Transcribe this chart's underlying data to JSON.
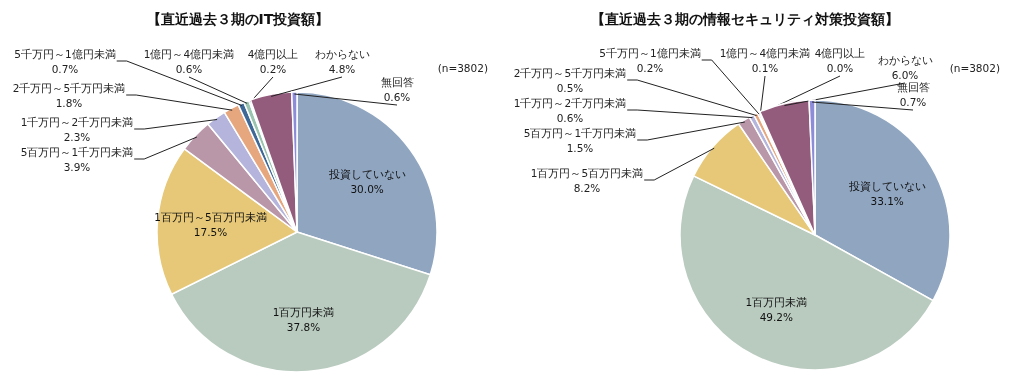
{
  "chart_data": [
    {
      "type": "pie",
      "title": "【直近過去３期のIT投資額】",
      "categories": [
        "投資していない",
        "1百万円未満",
        "1百万円～5百万円未満",
        "5百万円～1千万円未満",
        "1千万円～2千万円未満",
        "2千万円～5千万円未満",
        "5千万円～1億円未満",
        "1億円～4億円未満",
        "4億円以上",
        "わからない",
        "無回答"
      ],
      "values": [
        30.0,
        37.8,
        17.5,
        3.9,
        2.3,
        1.8,
        0.7,
        0.6,
        0.2,
        4.8,
        0.6
      ],
      "value_labels": [
        "30.0%",
        "37.8%",
        "17.5%",
        "3.9%",
        "2.3%",
        "1.8%",
        "0.7%",
        "0.6%",
        "0.2%",
        "4.8%",
        "0.6%"
      ],
      "colors": [
        "#8fa5c0",
        "#b9cbbf",
        "#e6c878",
        "#b996a8",
        "#b4b4dc",
        "#e6a67e",
        "#3e6896",
        "#9ac4b0",
        "#d8e8f0",
        "#945c7c",
        "#8c8cd8"
      ],
      "annotations": [
        "(n=3802)"
      ]
    },
    {
      "type": "pie",
      "title": "【直近過去３期の情報セキュリティ対策投資額】",
      "categories": [
        "投資していない",
        "1百万円未満",
        "1百万円～5百万円未満",
        "5百万円～1千万円未満",
        "1千万円～2千万円未満",
        "2千万円～5千万円未満",
        "5千万円～1億円未満",
        "1億円～4億円未満",
        "4億円以上",
        "わからない",
        "無回答"
      ],
      "values": [
        33.1,
        49.2,
        8.2,
        1.5,
        0.6,
        0.5,
        0.2,
        0.1,
        0.0,
        6.0,
        0.7
      ],
      "value_labels": [
        "33.1%",
        "49.2%",
        "8.2%",
        "1.5%",
        "0.6%",
        "0.5%",
        "0.2%",
        "0.1%",
        "0.0%",
        "6.0%",
        "0.7%"
      ],
      "colors": [
        "#8fa5c0",
        "#b9cbbf",
        "#e6c878",
        "#b996a8",
        "#b4b4dc",
        "#e6a67e",
        "#3e6896",
        "#9ac4b0",
        "#d8e8f0",
        "#945c7c",
        "#8c8cd8"
      ],
      "annotations": [
        "(n=3802)"
      ]
    }
  ]
}
